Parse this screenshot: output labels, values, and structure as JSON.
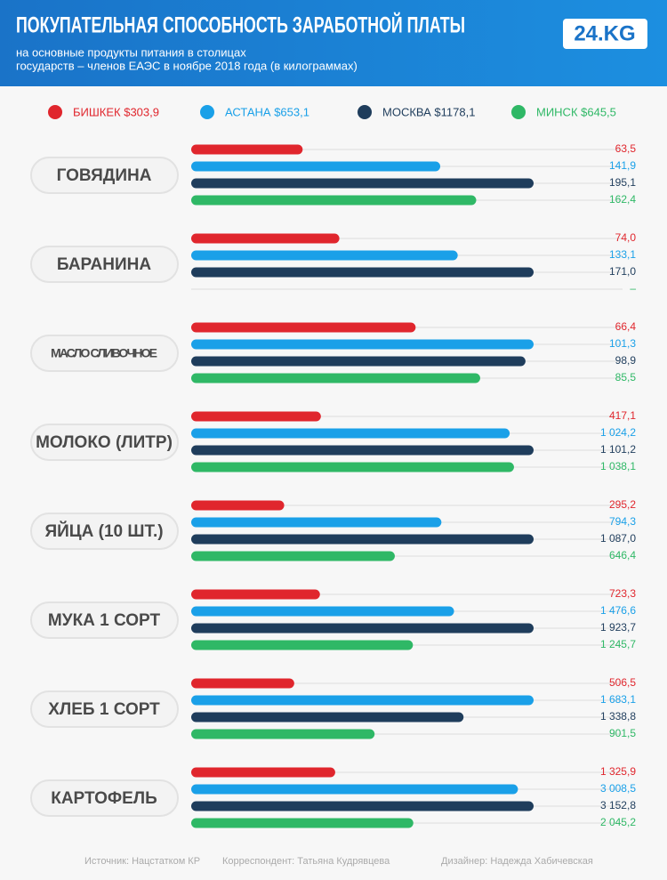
{
  "chart_data": {
    "type": "bar",
    "title": "ПОКУПАТЕЛЬНАЯ СПОСОБНОСТЬ ЗАРАБОТНОЙ ПЛАТЫ",
    "subtitle": [
      "на основные продукты питания в столицах",
      "государств – членов ЕАЭС в ноябре 2018 года (в килограммах)"
    ],
    "categories": [
      "ГОВЯДИНА",
      "БАРАНИНА",
      "МАСЛО СЛИВОЧНОЕ",
      "МОЛОКО (ЛИТР)",
      "ЯЙЦА (10 ШТ.)",
      "МУКА 1 СОРТ",
      "ХЛЕБ 1 СОРТ",
      "КАРТОФЕЛЬ"
    ],
    "series": [
      {
        "name": "БИШКЕК $303,9",
        "color": "#e0262d",
        "values": [
          63.5,
          74.0,
          66.4,
          417.1,
          295.2,
          723.3,
          506.5,
          1325.9
        ],
        "value_labels": [
          "63,5",
          "74,0",
          "66,4",
          "417,1",
          "295,2",
          "723,3",
          "506,5",
          "1 325,9"
        ]
      },
      {
        "name": "АСТАНА $653,1",
        "color": "#1aa0e8",
        "values": [
          141.9,
          133.1,
          101.3,
          1024.2,
          794.3,
          1476.6,
          1683.1,
          3008.5
        ],
        "value_labels": [
          "141,9",
          "133,1",
          "101,3",
          "1 024,2",
          "794,3",
          "1 476,6",
          "1 683,1",
          "3 008,5"
        ]
      },
      {
        "name": "МОСКВА $1178,1",
        "color": "#1f3d5c",
        "values": [
          195.1,
          171.0,
          98.9,
          1101.2,
          1087.0,
          1923.7,
          1338.8,
          3152.8
        ],
        "value_labels": [
          "195,1",
          "171,0",
          "98,9",
          "1 101,2",
          "1 087,0",
          "1 923,7",
          "1 338,8",
          "3 152,8"
        ]
      },
      {
        "name": "МИНСК $645,5",
        "color": "#2fb866",
        "values": [
          162.4,
          null,
          85.5,
          1038.1,
          646.4,
          1245.7,
          901.5,
          2045.2
        ],
        "value_labels": [
          "162,4",
          "–",
          "85,5",
          "1 038,1",
          "646,4",
          "1 245,7",
          "901,5",
          "2 045,2"
        ]
      }
    ]
  },
  "logo": "24.KG",
  "footer": [
    "Источник: Нацстатком КР",
    "Корреспондент: Татьяна Кудрявцева",
    "Дизайнер: Надежда Хабичевская"
  ]
}
